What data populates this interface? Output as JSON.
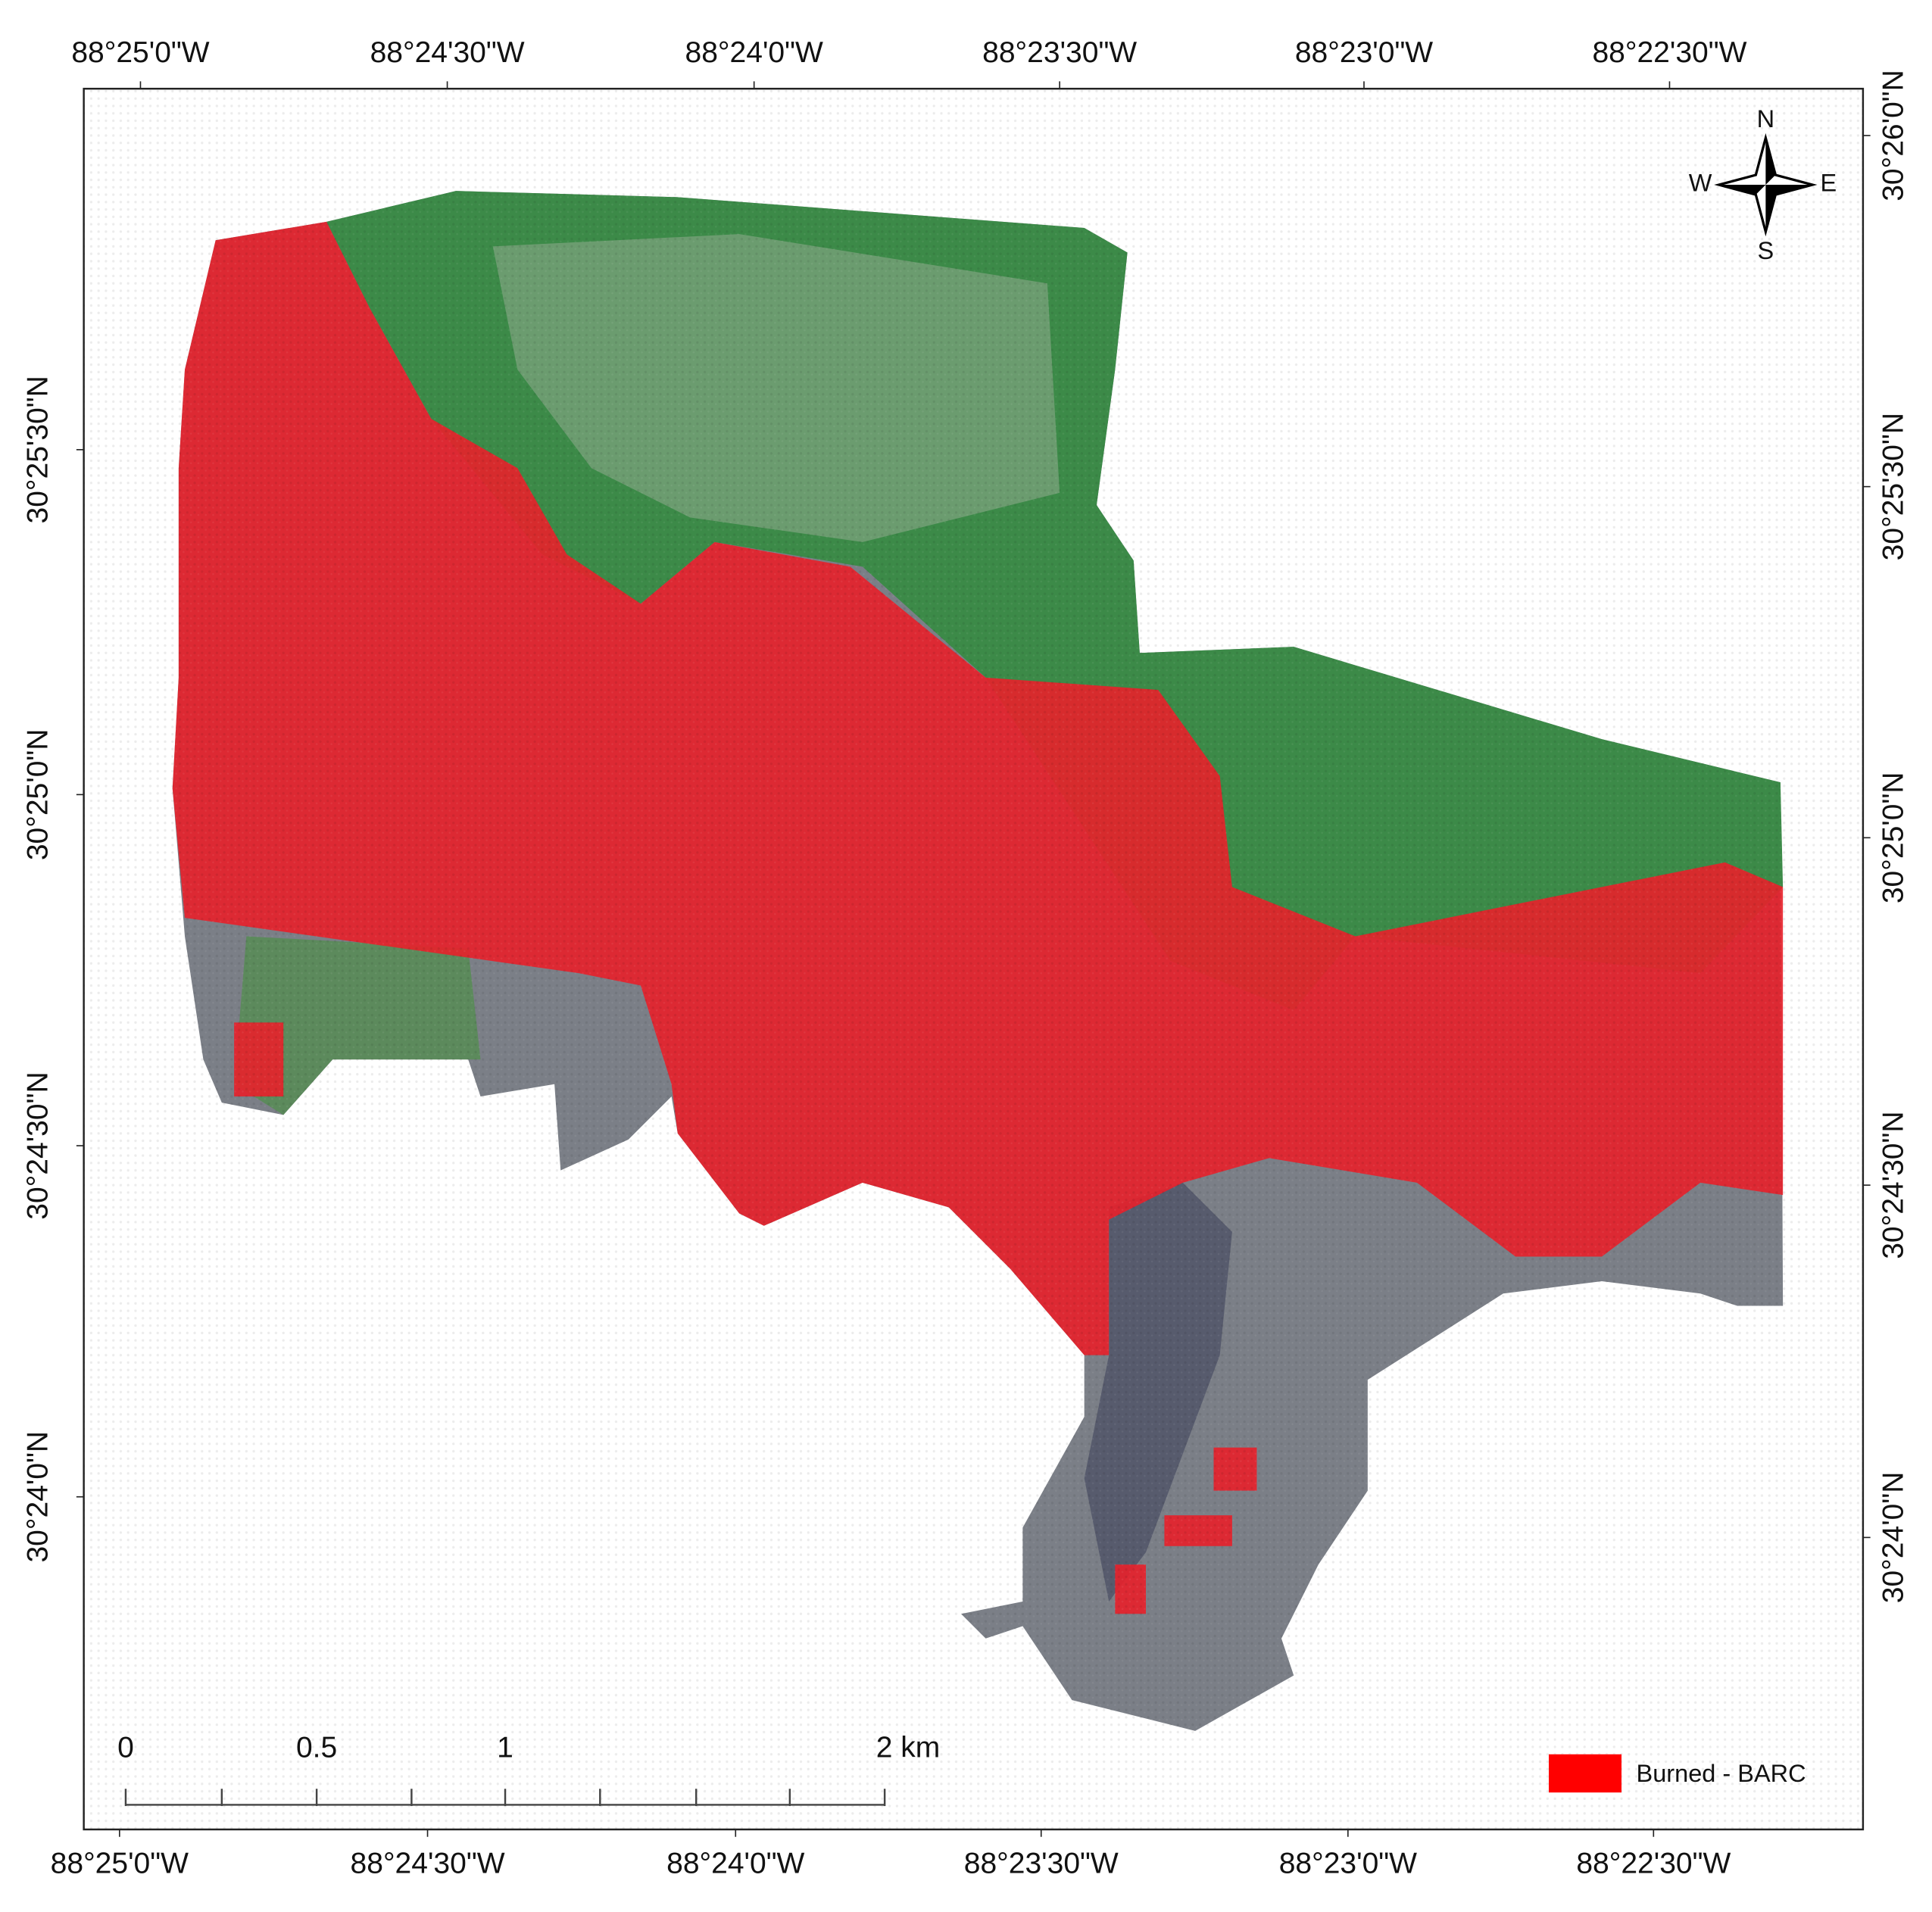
{
  "map": {
    "top_labels": [
      "88°25'0\"W",
      "88°24'30\"W",
      "88°24'0\"W",
      "88°23'30\"W",
      "88°23'0\"W",
      "88°22'30\"W"
    ],
    "bottom_labels": [
      "88°25'0\"W",
      "88°24'30\"W",
      "88°24'0\"W",
      "88°23'30\"W",
      "88°23'0\"W",
      "88°22'30\"W"
    ],
    "left_labels": [
      "30°25'30\"N",
      "30°25'0\"N",
      "30°24'30\"N",
      "30°24'0\"N"
    ],
    "right_labels": [
      "30°26'0\"N",
      "30°25'30\"N",
      "30°25'0\"N",
      "30°24'30\"N",
      "30°24'0\"N"
    ],
    "compass": {
      "n": "N",
      "s": "S",
      "e": "E",
      "w": "W"
    },
    "scale_bar": {
      "labels": [
        "0",
        "0.5",
        "1",
        "2 km"
      ]
    },
    "legend": {
      "label": "Burned - BARC",
      "color": "#ff0000"
    }
  }
}
